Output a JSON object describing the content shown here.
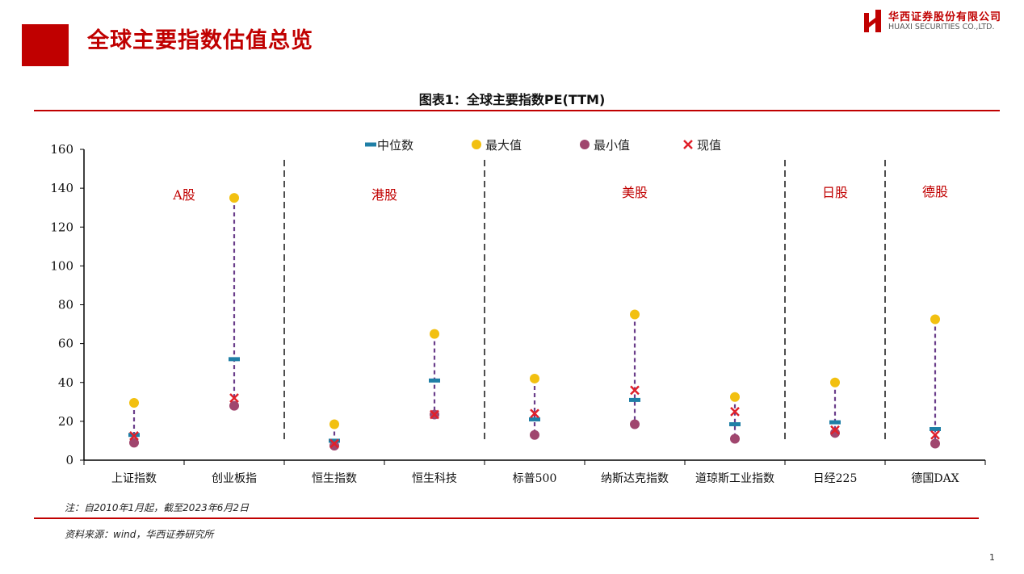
{
  "header": {
    "title": "全球主要指数估值总览",
    "logo_cn": "华西证券股份有限公司",
    "logo_en": "HUAXI SECURITIES CO.,LTD."
  },
  "chart_data": {
    "type": "scatter",
    "title": "图表1：全球主要指数PE(TTM)",
    "categories": [
      "上证指数",
      "创业板指",
      "恒生指数",
      "恒生科技",
      "标普500",
      "纳斯达克指数",
      "道琼斯工业指数",
      "日经225",
      "德国DAX"
    ],
    "ylim": [
      0,
      160
    ],
    "yticks": [
      0,
      20,
      40,
      60,
      80,
      100,
      120,
      140,
      160
    ],
    "grid": false,
    "legend_position": "top",
    "series": [
      {
        "name": "中位数",
        "marker": "dash",
        "color": "#1f7fa6",
        "values": [
          13,
          52,
          10,
          41,
          21,
          31,
          18.5,
          19.5,
          16
        ]
      },
      {
        "name": "最大值",
        "marker": "circle",
        "color": "#f2c010",
        "values": [
          29.5,
          135,
          18.5,
          65,
          42,
          75,
          32.5,
          40,
          72.5
        ]
      },
      {
        "name": "最小值",
        "marker": "circle",
        "color": "#a0466e",
        "values": [
          9,
          28,
          7.5,
          23.5,
          13,
          18.5,
          11,
          14,
          8.5
        ]
      },
      {
        "name": "现值",
        "marker": "x",
        "color": "#e0202a",
        "values": [
          12.5,
          32,
          8.5,
          23.5,
          24,
          36,
          25,
          15.5,
          13
        ]
      }
    ],
    "range_line_color": "#6a3d8a",
    "groups": [
      {
        "label": "A股",
        "categories": [
          "上证指数",
          "创业板指"
        ]
      },
      {
        "label": "港股",
        "categories": [
          "恒生指数",
          "恒生科技"
        ]
      },
      {
        "label": "美股",
        "categories": [
          "标普500",
          "纳斯达克指数",
          "道琼斯工业指数"
        ]
      },
      {
        "label": "日股",
        "categories": [
          "日经225"
        ]
      },
      {
        "label": "德股",
        "categories": [
          "德国DAX"
        ]
      }
    ],
    "group_label_color": "#c00000"
  },
  "footer": {
    "note": "注：自2010年1月起，截至2023年6月2日",
    "source": "资料来源：wind，华西证券研究所",
    "page": "1"
  }
}
